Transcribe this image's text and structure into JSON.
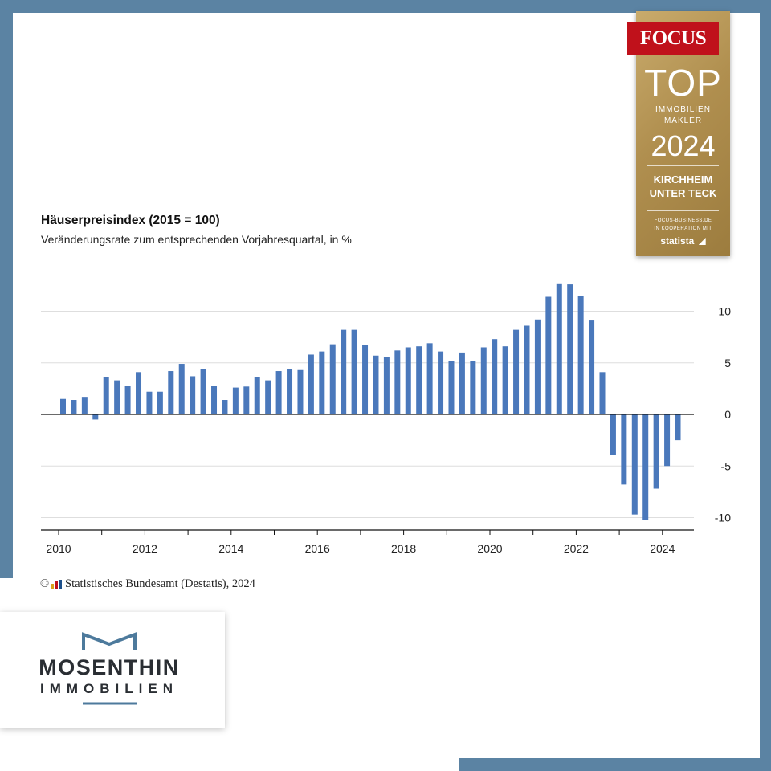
{
  "chart_data": {
    "type": "bar",
    "title": "Häuserpreisindex (2015 = 100)",
    "subtitle": "Veränderungsrate zum entsprechenden Vorjahresquartal, in %",
    "xlabel": "",
    "ylabel": "",
    "ylim": [
      -10.5,
      13
    ],
    "y_ticks": [
      10,
      5,
      0,
      -5,
      -10
    ],
    "y_tick_labels": [
      "10",
      "5",
      "0",
      "-5",
      "-10"
    ],
    "x_tick_labels": [
      "2010",
      "2012",
      "2014",
      "2016",
      "2018",
      "2020",
      "2022",
      "2024"
    ],
    "color": "#4a78bb",
    "categories": [
      "2010 Q1",
      "2010 Q2",
      "2010 Q3",
      "2010 Q4",
      "2011 Q1",
      "2011 Q2",
      "2011 Q3",
      "2011 Q4",
      "2012 Q1",
      "2012 Q2",
      "2012 Q3",
      "2012 Q4",
      "2013 Q1",
      "2013 Q2",
      "2013 Q3",
      "2013 Q4",
      "2014 Q1",
      "2014 Q2",
      "2014 Q3",
      "2014 Q4",
      "2015 Q1",
      "2015 Q2",
      "2015 Q3",
      "2015 Q4",
      "2016 Q1",
      "2016 Q2",
      "2016 Q3",
      "2016 Q4",
      "2017 Q1",
      "2017 Q2",
      "2017 Q3",
      "2017 Q4",
      "2018 Q1",
      "2018 Q2",
      "2018 Q3",
      "2018 Q4",
      "2019 Q1",
      "2019 Q2",
      "2019 Q3",
      "2019 Q4",
      "2020 Q1",
      "2020 Q2",
      "2020 Q3",
      "2020 Q4",
      "2021 Q1",
      "2021 Q2",
      "2021 Q3",
      "2021 Q4",
      "2022 Q1",
      "2022 Q2",
      "2022 Q3",
      "2022 Q4",
      "2023 Q1",
      "2023 Q2",
      "2023 Q3",
      "2023 Q4",
      "2024 Q1",
      "2024 Q2"
    ],
    "values": [
      1.5,
      1.4,
      1.7,
      -0.5,
      3.6,
      3.3,
      2.8,
      4.1,
      2.2,
      2.2,
      4.2,
      4.9,
      3.7,
      4.4,
      2.8,
      1.4,
      2.6,
      2.7,
      3.6,
      3.3,
      4.2,
      4.4,
      4.3,
      5.8,
      6.1,
      6.8,
      8.2,
      8.2,
      6.7,
      5.7,
      5.6,
      6.2,
      6.5,
      6.6,
      6.9,
      6.1,
      5.2,
      6.0,
      5.2,
      6.5,
      7.3,
      6.6,
      8.2,
      8.6,
      9.2,
      11.4,
      12.7,
      12.6,
      11.5,
      9.1,
      4.1,
      -3.9,
      -6.8,
      -9.7,
      -10.2,
      -7.2,
      -5.0,
      -2.5
    ]
  },
  "source": {
    "copyright_symbol": "©",
    "text": "Statistisches Bundesamt (Destatis), 2024"
  },
  "badge": {
    "brand": "FOCUS",
    "top": "TOP",
    "line1": "IMMOBILIEN",
    "line2": "MAKLER",
    "year": "2024",
    "city1": "KIRCHHEIM",
    "city2": "UNTER TECK",
    "footer1": "FOCUS-BUSINESS.DE",
    "footer2": "IN KOOPERATION MIT",
    "partner": "statista"
  },
  "logo": {
    "name": "MOSENTHIN",
    "sub": "IMMOBILIEN"
  }
}
